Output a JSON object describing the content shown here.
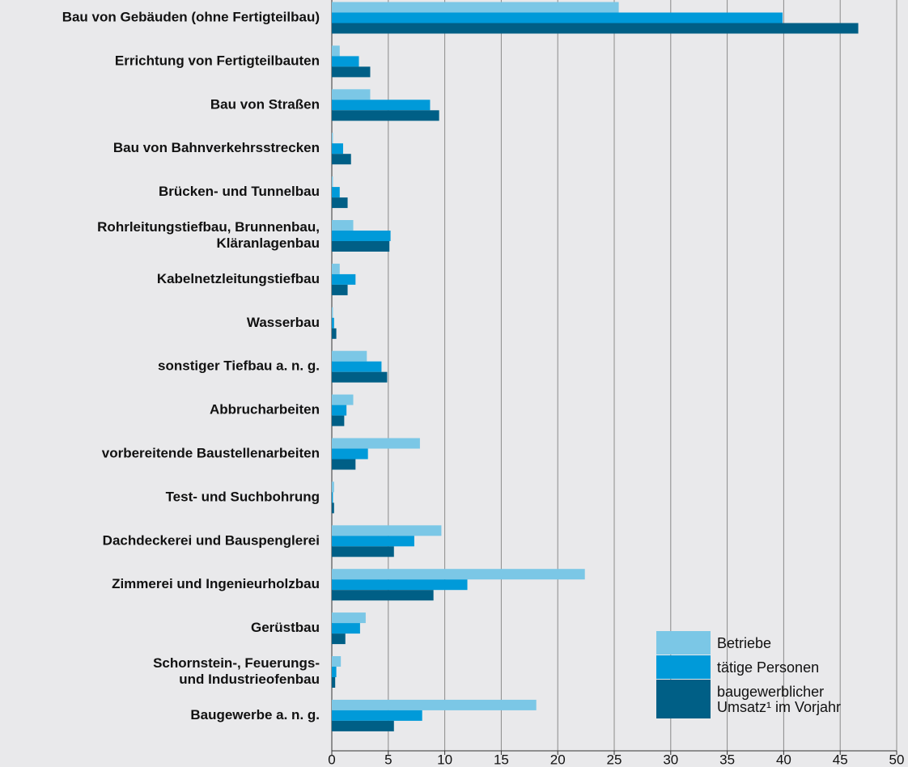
{
  "chart_data": {
    "type": "bar",
    "orientation": "horizontal",
    "categories": [
      "Bau von Gebäuden (ohne Fertigteilbau)",
      "Errichtung von Fertigteilbauten",
      "Bau von Straßen",
      "Bau von Bahnverkehrsstrecken",
      "Brücken- und Tunnelbau",
      [
        "Rohrleitungstiefbau, Brunnenbau,",
        "Kläranlagenbau"
      ],
      "Kabelnetzleitungstiefbau",
      "Wasserbau",
      "sonstiger Tiefbau a. n. g.",
      "Abbrucharbeiten",
      "vorbereitende Baustellenarbeiten",
      "Test- und Suchbohrung",
      "Dachdeckerei und Bauspenglerei",
      "Zimmerei und Ingenieurholzbau",
      "Gerüstbau",
      [
        "Schornstein-, Feuerungs-",
        "und Industrieofenbau"
      ],
      "Baugewerbe a. n. g."
    ],
    "series": [
      {
        "name": "Betriebe",
        "color": "#7bc7e6",
        "values": [
          25.4,
          0.7,
          3.4,
          0.1,
          0.1,
          1.9,
          0.7,
          0.1,
          3.1,
          1.9,
          7.8,
          0.2,
          9.7,
          22.4,
          3.0,
          0.8,
          18.1
        ]
      },
      {
        "name": "tätige Personen",
        "color": "#009ad9",
        "values": [
          39.9,
          2.4,
          8.7,
          1.0,
          0.7,
          5.2,
          2.1,
          0.2,
          4.4,
          1.3,
          3.2,
          0.1,
          7.3,
          12.0,
          2.5,
          0.4,
          8.0
        ]
      },
      {
        "name": "baugewerblicher Umsatz¹ im Vorjahr",
        "color": "#005f86",
        "values": [
          46.6,
          3.4,
          9.5,
          1.7,
          1.4,
          5.1,
          1.4,
          0.4,
          4.9,
          1.1,
          2.1,
          0.2,
          5.5,
          9.0,
          1.2,
          0.3,
          5.5
        ]
      }
    ],
    "xlim": [
      0,
      50
    ],
    "xticks": [
      0,
      5,
      10,
      15,
      20,
      25,
      30,
      35,
      40,
      45,
      50
    ],
    "grid": true,
    "legend": "lower right"
  }
}
